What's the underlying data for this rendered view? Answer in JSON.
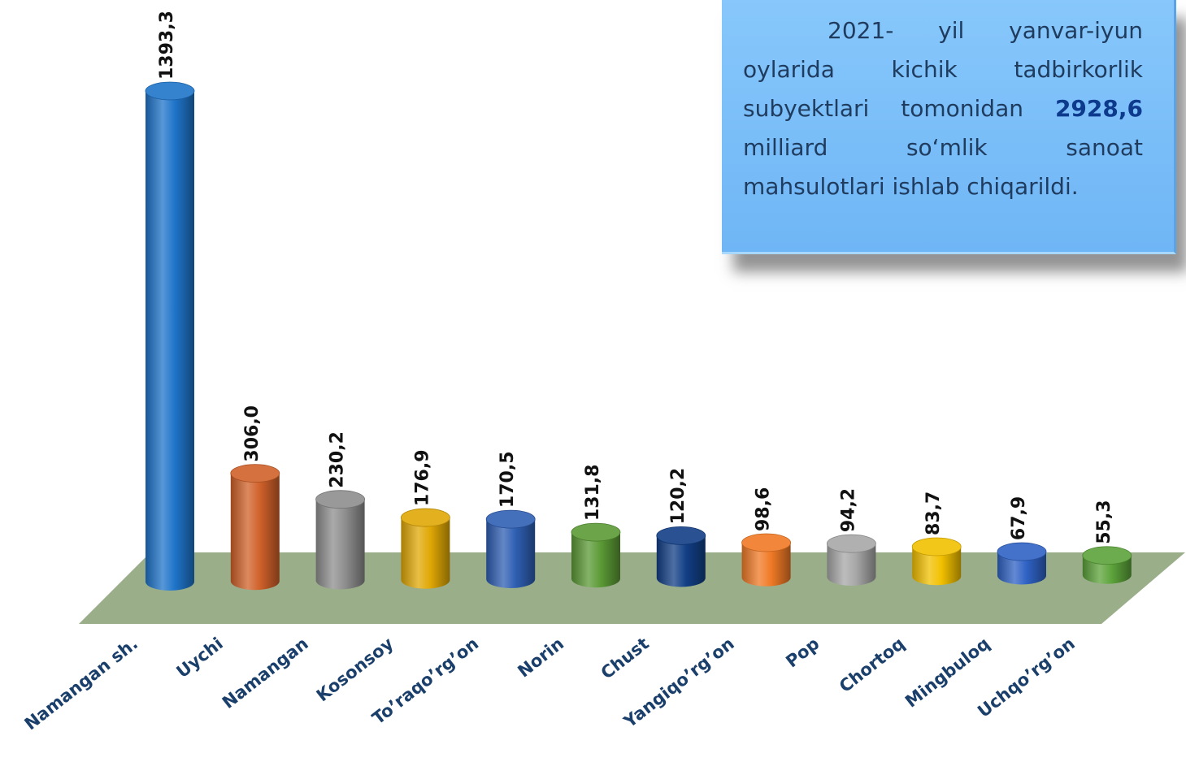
{
  "info_box": {
    "text_before": "2021- yil yanvar-iyun oylarida kichik tadbirkorlik subyektlari tomonidan ",
    "highlight": "2928,6",
    "text_after": " milliard so‘mlik sanoat mahsulotlari ishlab chiqarildi."
  },
  "chart_data": {
    "type": "bar",
    "categories": [
      "Namangan sh.",
      "Uychi",
      "Namangan",
      "Kosonsoy",
      "To’raqo’rg’on",
      "Norin",
      "Chust",
      "Yangiqo’rg’on",
      "Pop",
      "Chortoq",
      "Mingbuloq",
      "Uchqo’rg’on"
    ],
    "values": [
      1393.3,
      306.0,
      230.2,
      176.9,
      170.5,
      131.8,
      120.2,
      98.6,
      94.2,
      83.7,
      67.9,
      55.3
    ],
    "value_labels": [
      "1393,3",
      "306,0",
      "230,2",
      "176,9",
      "170,5",
      "131,8",
      "120,2",
      "98,6",
      "94,2",
      "83,7",
      "67,9",
      "55,3"
    ],
    "colors": [
      "#1f74c9",
      "#d0612a",
      "#8e8e8e",
      "#e0a806",
      "#2f5fb3",
      "#5b9a35",
      "#123f86",
      "#f07a26",
      "#a7a7a7",
      "#f2c000",
      "#2f62c4",
      "#5ca33a"
    ],
    "floor_color": "#9aae8a",
    "title": "",
    "xlabel": "",
    "ylabel": "",
    "ylim": [
      0,
      1393.3
    ]
  }
}
